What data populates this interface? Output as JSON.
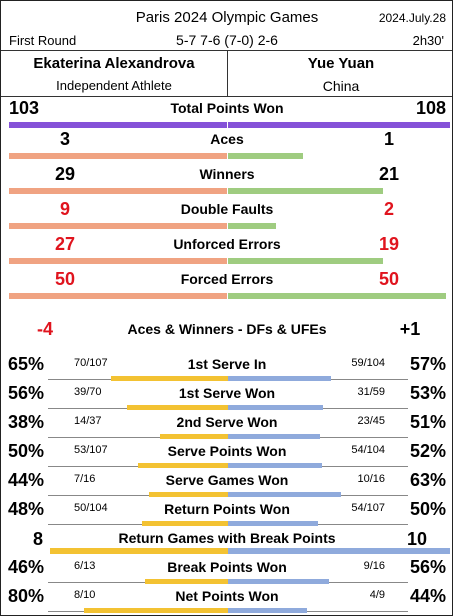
{
  "header": {
    "event": "Paris 2024 Olympic Games",
    "date": "2024.July.28",
    "round": "First Round",
    "score": "5-7 7-6 (7-0) 2-6",
    "duration": "2h30'"
  },
  "players": {
    "left": {
      "name": "Ekaterina Alexandrova",
      "country": "Independent Athlete"
    },
    "right": {
      "name": "Yue Yuan",
      "country": "China"
    }
  },
  "colors": {
    "purple": "#8552d8",
    "salmon": "#f0a382",
    "green": "#9fcc80",
    "gold": "#f3c232",
    "steel": "#8faadc",
    "red": "#e0141e"
  },
  "top_stats": [
    {
      "label": "Total Points Won",
      "left": "103",
      "right": "108",
      "left_red": false,
      "right_red": false
    },
    {
      "label": "Aces",
      "left": "3",
      "right": "1",
      "left_red": false,
      "right_red": false
    },
    {
      "label": "Winners",
      "left": "29",
      "right": "21",
      "left_red": false,
      "right_red": false
    },
    {
      "label": "Double Faults",
      "left": "9",
      "right": "2",
      "left_red": true,
      "right_red": true
    },
    {
      "label": "Unforced Errors",
      "left": "27",
      "right": "19",
      "left_red": true,
      "right_red": true
    },
    {
      "label": "Forced Errors",
      "left": "50",
      "right": "50",
      "left_red": true,
      "right_red": true
    }
  ],
  "summary": {
    "label": "Aces & Winners - DFs & UFEs",
    "left": "-4",
    "right": "+1"
  },
  "pct_stats": [
    {
      "label": "1st Serve In",
      "left_pct": "65%",
      "left_frac": "70/107",
      "right_frac": "59/104",
      "right_pct": "57%"
    },
    {
      "label": "1st Serve Won",
      "left_pct": "56%",
      "left_frac": "39/70",
      "right_frac": "31/59",
      "right_pct": "53%"
    },
    {
      "label": "2nd Serve Won",
      "left_pct": "38%",
      "left_frac": "14/37",
      "right_frac": "23/45",
      "right_pct": "51%"
    },
    {
      "label": "Serve Points Won",
      "left_pct": "50%",
      "left_frac": "53/107",
      "right_frac": "54/104",
      "right_pct": "52%"
    },
    {
      "label": "Serve Games Won",
      "left_pct": "44%",
      "left_frac": "7/16",
      "right_frac": "10/16",
      "right_pct": "63%"
    },
    {
      "label": "Return Points Won",
      "left_pct": "48%",
      "left_frac": "50/104",
      "right_frac": "54/107",
      "right_pct": "50%"
    }
  ],
  "break_row": {
    "label": "Return Games with Break Points",
    "left": "8",
    "right": "10"
  },
  "bottom_pct_stats": [
    {
      "label": "Break Points Won",
      "left_pct": "46%",
      "left_frac": "6/13",
      "right_frac": "9/16",
      "right_pct": "56%"
    },
    {
      "label": "Net Points Won",
      "left_pct": "80%",
      "left_frac": "8/10",
      "right_frac": "4/9",
      "right_pct": "44%"
    }
  ]
}
